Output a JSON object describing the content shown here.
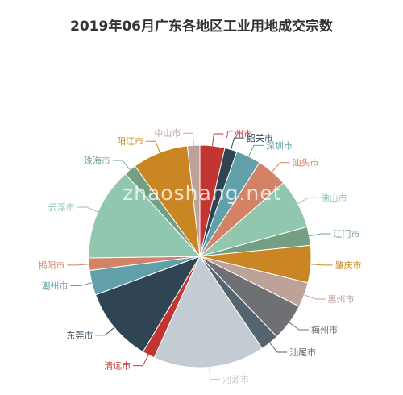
{
  "chart_data": {
    "type": "pie",
    "title": "2019年06月广东各地区工业用地成交宗数",
    "watermark": "zhaoshang.net",
    "slices": [
      {
        "name": "广州市",
        "value": 4,
        "color": "#c23531"
      },
      {
        "name": "韶关市",
        "value": 2,
        "color": "#2f4554"
      },
      {
        "name": "深圳市",
        "value": 4,
        "color": "#61a0a8"
      },
      {
        "name": "汕头市",
        "value": 5,
        "color": "#d48265"
      },
      {
        "name": "佛山市",
        "value": 8,
        "color": "#91c7ae"
      },
      {
        "name": "江门市",
        "value": 3,
        "color": "#749f83"
      },
      {
        "name": "肇庆市",
        "value": 6,
        "color": "#ca8622"
      },
      {
        "name": "惠州市",
        "value": 4,
        "color": "#bda29a"
      },
      {
        "name": "梅州市",
        "value": 6,
        "color": "#6e7074"
      },
      {
        "name": "汕尾市",
        "value": 3,
        "color": "#546570"
      },
      {
        "name": "河源市",
        "value": 18,
        "color": "#c4ccd3"
      },
      {
        "name": "清远市",
        "value": 2,
        "color": "#c23531"
      },
      {
        "name": "东莞市",
        "value": 12,
        "color": "#2f4554"
      },
      {
        "name": "潮州市",
        "value": 4,
        "color": "#61a0a8"
      },
      {
        "name": "揭阳市",
        "value": 2,
        "color": "#d48265"
      },
      {
        "name": "云浮市",
        "value": 15,
        "color": "#91c7ae"
      },
      {
        "name": "珠海市",
        "value": 2,
        "color": "#749f83"
      },
      {
        "name": "阳江市",
        "value": 9,
        "color": "#ca8622"
      },
      {
        "name": "中山市",
        "value": 2,
        "color": "#bda29a"
      }
    ]
  }
}
